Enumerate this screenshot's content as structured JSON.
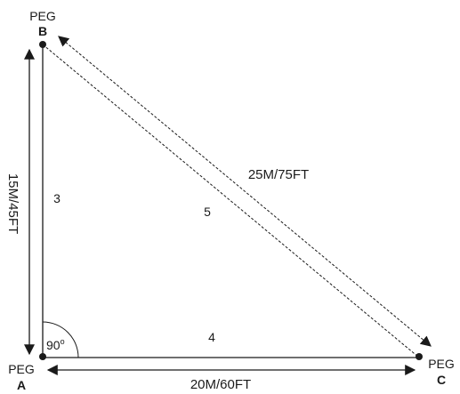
{
  "pegs": {
    "a": {
      "caption": "PEG",
      "letter": "A"
    },
    "b": {
      "caption": "PEG",
      "letter": "B"
    },
    "c": {
      "caption": "PEG",
      "letter": "C"
    }
  },
  "sides": {
    "vertical": {
      "ratio": "3",
      "measure": "15M/45FT"
    },
    "horizontal": {
      "ratio": "4",
      "measure": "20M/60FT"
    },
    "diagonal": {
      "ratio": "5",
      "measure": "25M/75FT"
    }
  },
  "right_angle": {
    "degrees": "90",
    "unit": "o"
  },
  "colors": {
    "line": "#1a1a1a",
    "peg": "#1a1a1a"
  }
}
